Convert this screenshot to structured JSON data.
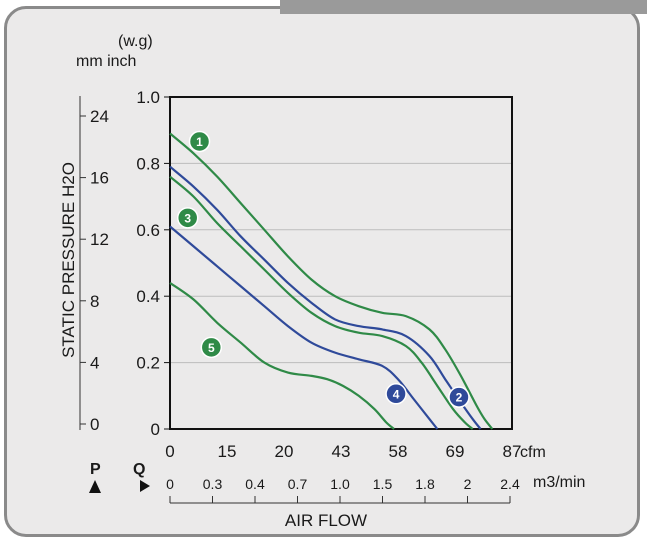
{
  "chart_data": {
    "type": "line",
    "units_top": "(w.g)",
    "units_bottom": "mm inch",
    "ylabel": "STATIC PRESSURE H2O",
    "xlabel": "AIR FLOW",
    "ylim": [
      0,
      1.0
    ],
    "xlim_cfm": [
      0,
      87
    ],
    "y_ticks_inch": [
      "1.0",
      "0.8",
      "0.6",
      "0.4",
      "0.2",
      "0"
    ],
    "y_ticks_mm": [
      "24",
      "16",
      "12",
      "8",
      "4",
      "0"
    ],
    "x_ticks_cfm": [
      "0",
      "15",
      "20",
      "43",
      "58",
      "69",
      "87"
    ],
    "x_unit_cfm": "cfm",
    "x_ticks_m3": [
      "0",
      "0.3",
      "0.4",
      "0.7",
      "1.0",
      "1.5",
      "1.8",
      "2",
      "2.4"
    ],
    "x_unit_m3": "m3/min",
    "p_label": "P",
    "q_label": "Q",
    "grid": true,
    "series": [
      {
        "name": "1",
        "color": "#2f8a47",
        "x": [
          0,
          6,
          12,
          18,
          24,
          30,
          36,
          42,
          48,
          54,
          60,
          66,
          70,
          74,
          78,
          80,
          82
        ],
        "y": [
          0.89,
          0.83,
          0.76,
          0.68,
          0.6,
          0.52,
          0.45,
          0.4,
          0.37,
          0.35,
          0.34,
          0.3,
          0.24,
          0.16,
          0.07,
          0.03,
          0.0
        ]
      },
      {
        "name": "2",
        "color": "#2f4a9a",
        "x": [
          0,
          6,
          12,
          18,
          24,
          30,
          36,
          42,
          48,
          54,
          60,
          66,
          70,
          74,
          77,
          79
        ],
        "y": [
          0.79,
          0.73,
          0.66,
          0.58,
          0.51,
          0.44,
          0.38,
          0.33,
          0.31,
          0.3,
          0.28,
          0.22,
          0.15,
          0.08,
          0.03,
          0.0
        ]
      },
      {
        "name": "3",
        "color": "#2f8a47",
        "x": [
          0,
          6,
          12,
          18,
          24,
          30,
          36,
          42,
          48,
          54,
          60,
          64,
          68,
          72,
          75,
          77
        ],
        "y": [
          0.76,
          0.7,
          0.62,
          0.55,
          0.48,
          0.41,
          0.35,
          0.31,
          0.29,
          0.28,
          0.25,
          0.2,
          0.13,
          0.06,
          0.02,
          0.0
        ]
      },
      {
        "name": "4",
        "color": "#2f4a9a",
        "x": [
          0,
          6,
          12,
          18,
          24,
          30,
          36,
          42,
          48,
          54,
          58,
          62,
          66,
          68
        ],
        "y": [
          0.61,
          0.55,
          0.49,
          0.43,
          0.37,
          0.31,
          0.26,
          0.23,
          0.21,
          0.19,
          0.15,
          0.09,
          0.03,
          0.0
        ]
      },
      {
        "name": "5",
        "color": "#2f8a47",
        "x": [
          0,
          6,
          12,
          18,
          24,
          30,
          36,
          40,
          44,
          48,
          52,
          55,
          57
        ],
        "y": [
          0.44,
          0.39,
          0.32,
          0.26,
          0.2,
          0.17,
          0.16,
          0.15,
          0.13,
          0.1,
          0.06,
          0.02,
          0.0
        ]
      }
    ]
  }
}
